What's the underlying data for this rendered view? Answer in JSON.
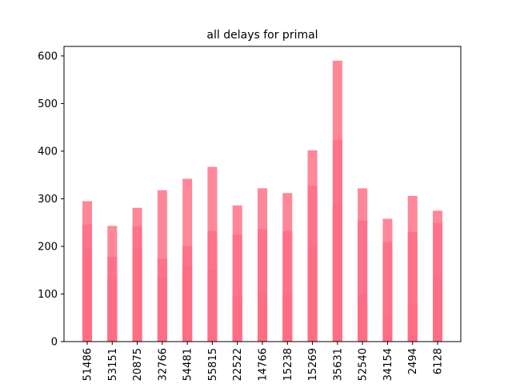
{
  "chart_data": {
    "type": "bar",
    "title": "all delays for primal",
    "xlabel": "",
    "ylabel": "",
    "ylim": [
      0,
      620
    ],
    "yticks": [
      0,
      100,
      200,
      300,
      400,
      500,
      600
    ],
    "grid": false,
    "categories": [
      "51486",
      "53151",
      "20875",
      "32766",
      "54481",
      "55815",
      "22522",
      "14766",
      "15238",
      "15269",
      "35631",
      "52540",
      "34154",
      "2494",
      "6128"
    ],
    "series": [
      {
        "values": [
          295,
          243,
          281,
          318,
          342,
          367,
          286,
          322,
          312,
          402,
          590,
          322,
          258,
          306,
          275
        ]
      },
      {
        "values": [
          246,
          178,
          242,
          174,
          201,
          232,
          225,
          236,
          232,
          327,
          424,
          254,
          209,
          230,
          249
        ]
      },
      {
        "values": [
          195,
          132,
          195,
          135,
          160,
          150,
          95,
          105,
          100,
          200,
          290,
          100,
          55,
          80,
          135
        ]
      }
    ],
    "colors": [
      "#ff8799",
      "#ff7289",
      "#ff6d84"
    ]
  }
}
